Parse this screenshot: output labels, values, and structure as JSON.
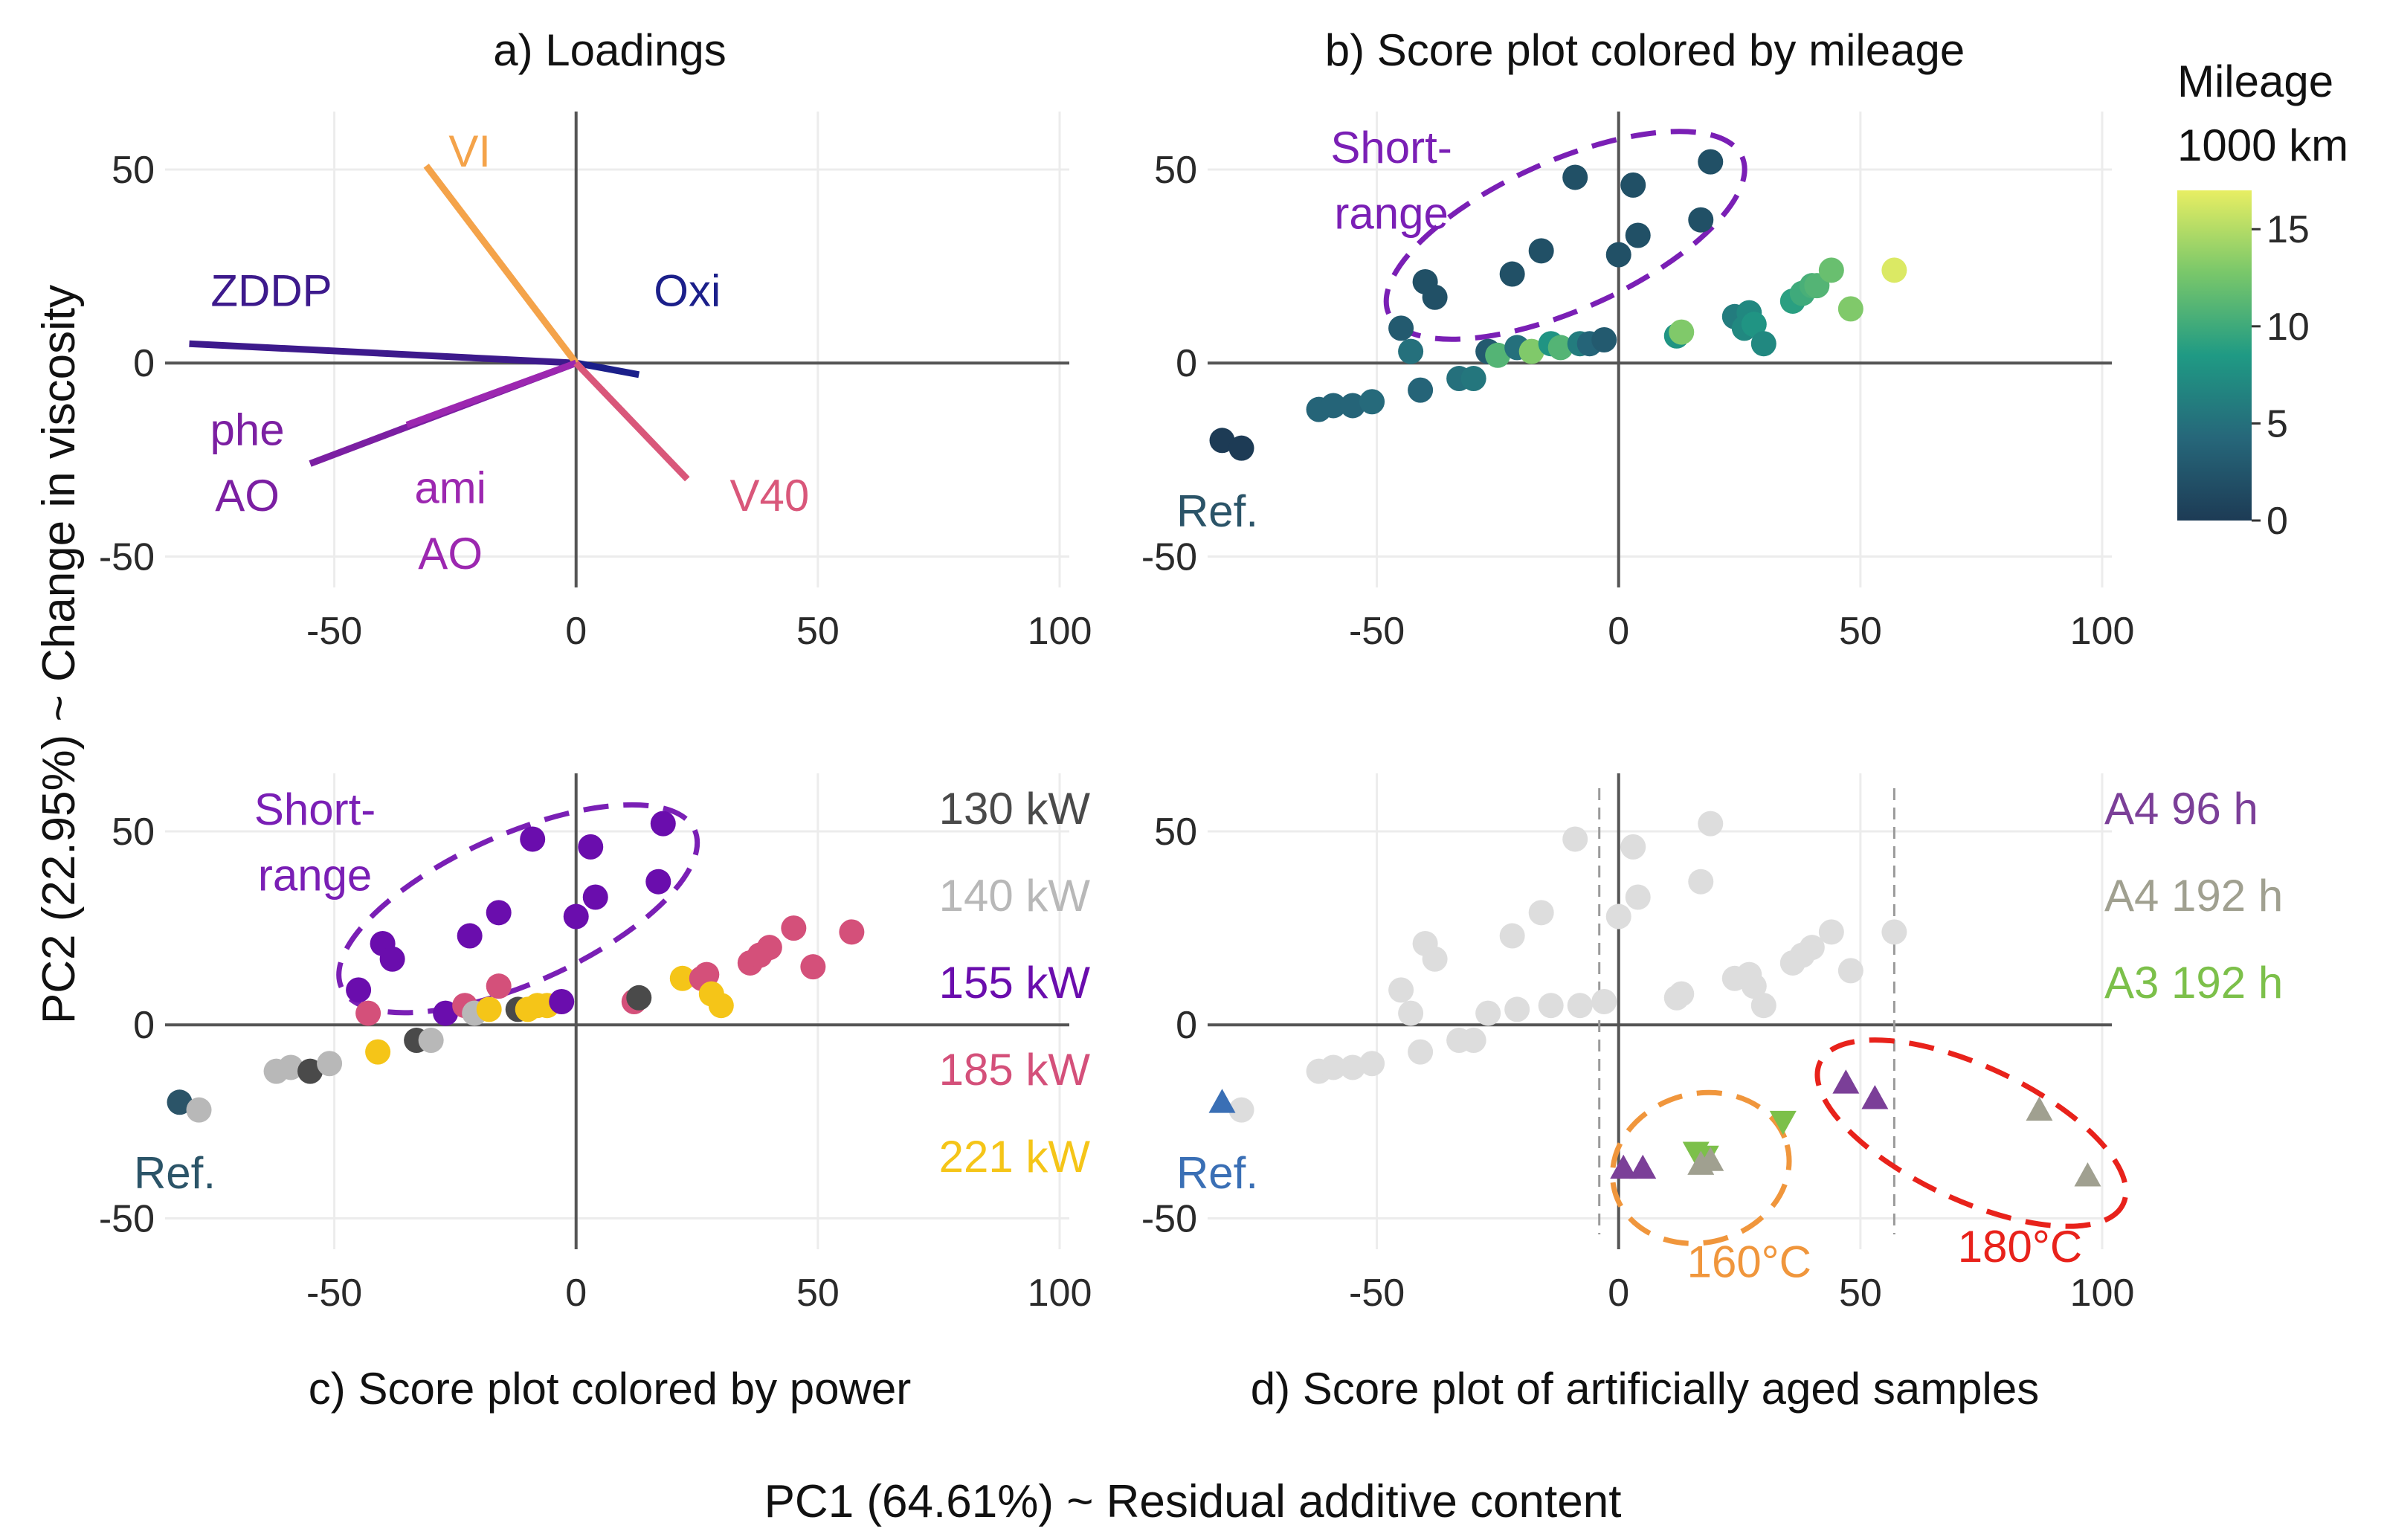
{
  "figure": {
    "x_label": "PC1 (64.61%) ~ Residual additive content",
    "y_label": "PC2 (22.95%) ~ Change in viscosity"
  },
  "colors": {
    "zddp": "#3d1a8c",
    "oxi": "#1b1f8a",
    "vi": "#f4a34a",
    "phe_ao": "#7b1fa2",
    "ami_ao": "#9c27b0",
    "v40": "#d9577a",
    "short_range": "#7a1fb5",
    "ref": "#2b5468",
    "grid": "#ececec",
    "zero_line": "#555555",
    "kw130": "#4a4a4a",
    "kw140": "#b8b8b8",
    "kw155": "#6a0dad",
    "kw185": "#d4507a",
    "kw221": "#f5c518",
    "a4_96h": "#7b3f98",
    "a4_192h": "#a0a090",
    "a3_192h": "#7cc04a",
    "c160": "#f0963c",
    "c180": "#e8221b",
    "bg_points": "#dddddd",
    "ref_triangle": "#3a6fb5"
  },
  "chart_data": [
    {
      "id": "a",
      "type": "line",
      "title": "a) Loadings",
      "xlim": [
        -85,
        102
      ],
      "ylim": [
        -58,
        65
      ],
      "x_ticks": [
        -50,
        0,
        50,
        100
      ],
      "y_ticks": [
        50,
        0,
        -50
      ],
      "series": [
        {
          "name": "ZDDP",
          "color_key": "zddp",
          "x": [
            0,
            -80
          ],
          "y": [
            0,
            5
          ]
        },
        {
          "name": "Oxi",
          "color_key": "oxi",
          "x": [
            0,
            13
          ],
          "y": [
            0,
            -3
          ]
        },
        {
          "name": "VI",
          "color_key": "vi",
          "x": [
            0,
            -31
          ],
          "y": [
            0,
            51
          ]
        },
        {
          "name": "phe AO",
          "color_key": "phe_ao",
          "x": [
            0,
            -55
          ],
          "y": [
            0,
            -26
          ]
        },
        {
          "name": "ami AO",
          "color_key": "ami_ao",
          "x": [
            0,
            -35
          ],
          "y": [
            0,
            -16
          ]
        },
        {
          "name": "V40",
          "color_key": "v40",
          "x": [
            0,
            23
          ],
          "y": [
            0,
            -30
          ]
        }
      ],
      "labels": [
        {
          "text": "ZDDP",
          "x": -63,
          "y": 19,
          "color_key": "zddp"
        },
        {
          "text": "Oxi",
          "x": 23,
          "y": 19,
          "color_key": "oxi"
        },
        {
          "text": "VI",
          "x": -22,
          "y": 55,
          "color_key": "vi"
        },
        {
          "text": "phe",
          "x": -68,
          "y": -17,
          "color_key": "phe_ao"
        },
        {
          "text": "AO",
          "x": -68,
          "y": -34,
          "color_key": "phe_ao"
        },
        {
          "text": "ami",
          "x": -26,
          "y": -32,
          "color_key": "ami_ao"
        },
        {
          "text": "AO",
          "x": -26,
          "y": -49,
          "color_key": "ami_ao"
        },
        {
          "text": "V40",
          "x": 40,
          "y": -34,
          "color_key": "v40"
        }
      ]
    },
    {
      "id": "b",
      "type": "scatter",
      "title": "b) Score plot colored by mileage",
      "xlim": [
        -85,
        102
      ],
      "ylim": [
        -58,
        65
      ],
      "x_ticks": [
        -50,
        0,
        50,
        100
      ],
      "y_ticks": [
        50,
        0,
        -50
      ],
      "colorbar": {
        "title_line1": "Mileage",
        "title_line2": "1000 km",
        "min": 0,
        "max": 17,
        "ticks": [
          15,
          10,
          5,
          0
        ]
      },
      "points": [
        {
          "x": -82,
          "y": -20,
          "mileage": 0
        },
        {
          "x": -78,
          "y": -22,
          "mileage": 0
        },
        {
          "x": -62,
          "y": -12,
          "mileage": 4
        },
        {
          "x": -59,
          "y": -11,
          "mileage": 4
        },
        {
          "x": -55,
          "y": -11,
          "mileage": 4
        },
        {
          "x": -51,
          "y": -10,
          "mileage": 4.5
        },
        {
          "x": -45,
          "y": 9,
          "mileage": 3
        },
        {
          "x": -43,
          "y": 3,
          "mileage": 5
        },
        {
          "x": -41,
          "y": -7,
          "mileage": 4
        },
        {
          "x": -40,
          "y": 21,
          "mileage": 2
        },
        {
          "x": -38,
          "y": 17,
          "mileage": 2
        },
        {
          "x": -33,
          "y": -4,
          "mileage": 5
        },
        {
          "x": -30,
          "y": -4,
          "mileage": 5.5
        },
        {
          "x": -27,
          "y": 3,
          "mileage": 3
        },
        {
          "x": -25,
          "y": 2,
          "mileage": 11
        },
        {
          "x": -22,
          "y": 23,
          "mileage": 2
        },
        {
          "x": -21,
          "y": 4,
          "mileage": 5
        },
        {
          "x": -18,
          "y": 3,
          "mileage": 13
        },
        {
          "x": -16,
          "y": 29,
          "mileage": 2
        },
        {
          "x": -14,
          "y": 5,
          "mileage": 8
        },
        {
          "x": -12,
          "y": 4,
          "mileage": 11
        },
        {
          "x": -9,
          "y": 48,
          "mileage": 2
        },
        {
          "x": -8,
          "y": 5,
          "mileage": 6
        },
        {
          "x": -6,
          "y": 5,
          "mileage": 4
        },
        {
          "x": -3,
          "y": 6,
          "mileage": 3
        },
        {
          "x": 0,
          "y": 28,
          "mileage": 2
        },
        {
          "x": 3,
          "y": 46,
          "mileage": 2
        },
        {
          "x": 4,
          "y": 33,
          "mileage": 2
        },
        {
          "x": 12,
          "y": 7,
          "mileage": 8
        },
        {
          "x": 13,
          "y": 8,
          "mileage": 13
        },
        {
          "x": 17,
          "y": 37,
          "mileage": 2
        },
        {
          "x": 19,
          "y": 52,
          "mileage": 2
        },
        {
          "x": 24,
          "y": 12,
          "mileage": 6
        },
        {
          "x": 26,
          "y": 9,
          "mileage": 7
        },
        {
          "x": 27,
          "y": 13,
          "mileage": 7
        },
        {
          "x": 28,
          "y": 10,
          "mileage": 8
        },
        {
          "x": 30,
          "y": 5,
          "mileage": 7
        },
        {
          "x": 36,
          "y": 16,
          "mileage": 9
        },
        {
          "x": 38,
          "y": 18,
          "mileage": 10
        },
        {
          "x": 40,
          "y": 20,
          "mileage": 10.5
        },
        {
          "x": 41,
          "y": 20,
          "mileage": 11
        },
        {
          "x": 44,
          "y": 24,
          "mileage": 12
        },
        {
          "x": 48,
          "y": 14,
          "mileage": 13
        },
        {
          "x": 57,
          "y": 24,
          "mileage": 16.5
        }
      ],
      "annotations": [
        {
          "text": "Short-",
          "x": -47,
          "y": 56,
          "color_key": "short_range"
        },
        {
          "text": "range",
          "x": -47,
          "y": 39,
          "color_key": "short_range"
        },
        {
          "text": "Ref.",
          "x": -83,
          "y": -38,
          "color_key": "ref"
        }
      ]
    },
    {
      "id": "c",
      "type": "scatter",
      "title": "c) Score plot colored by power",
      "xlim": [
        -85,
        102
      ],
      "ylim": [
        -58,
        65
      ],
      "x_ticks": [
        -50,
        0,
        50,
        100
      ],
      "y_ticks": [
        50,
        0,
        -50
      ],
      "legend": [
        {
          "label": "130 kW",
          "color_key": "kw130"
        },
        {
          "label": "140 kW",
          "color_key": "kw140"
        },
        {
          "label": "155 kW",
          "color_key": "kw155"
        },
        {
          "label": "185 kW",
          "color_key": "kw185"
        },
        {
          "label": "221 kW",
          "color_key": "kw221"
        }
      ],
      "points": [
        {
          "x": -82,
          "y": -20,
          "group": "ref"
        },
        {
          "x": -78,
          "y": -22,
          "group": "kw140"
        },
        {
          "x": -62,
          "y": -12,
          "group": "kw140"
        },
        {
          "x": -59,
          "y": -11,
          "group": "kw140"
        },
        {
          "x": -55,
          "y": -12,
          "group": "kw130"
        },
        {
          "x": -51,
          "y": -10,
          "group": "kw140"
        },
        {
          "x": -45,
          "y": 9,
          "group": "kw155"
        },
        {
          "x": -43,
          "y": 3,
          "group": "kw185"
        },
        {
          "x": -41,
          "y": -7,
          "group": "kw221"
        },
        {
          "x": -40,
          "y": 21,
          "group": "kw155"
        },
        {
          "x": -38,
          "y": 17,
          "group": "kw155"
        },
        {
          "x": -33,
          "y": -4,
          "group": "kw130"
        },
        {
          "x": -30,
          "y": -4,
          "group": "kw140"
        },
        {
          "x": -27,
          "y": 3,
          "group": "kw155"
        },
        {
          "x": -23,
          "y": 5,
          "group": "kw185"
        },
        {
          "x": -21,
          "y": 3,
          "group": "kw140"
        },
        {
          "x": -22,
          "y": 23,
          "group": "kw155"
        },
        {
          "x": -18,
          "y": 4,
          "group": "kw221"
        },
        {
          "x": -16,
          "y": 29,
          "group": "kw155"
        },
        {
          "x": -16,
          "y": 10,
          "group": "kw185"
        },
        {
          "x": -12,
          "y": 4,
          "group": "kw130"
        },
        {
          "x": -10,
          "y": 4,
          "group": "kw221"
        },
        {
          "x": -9,
          "y": 48,
          "group": "kw155"
        },
        {
          "x": -8,
          "y": 5,
          "group": "kw221"
        },
        {
          "x": -6,
          "y": 5,
          "group": "kw221"
        },
        {
          "x": -3,
          "y": 6,
          "group": "kw155"
        },
        {
          "x": 0,
          "y": 28,
          "group": "kw155"
        },
        {
          "x": 3,
          "y": 46,
          "group": "kw155"
        },
        {
          "x": 4,
          "y": 33,
          "group": "kw155"
        },
        {
          "x": 12,
          "y": 6,
          "group": "kw185"
        },
        {
          "x": 13,
          "y": 7,
          "group": "kw130"
        },
        {
          "x": 17,
          "y": 37,
          "group": "kw155"
        },
        {
          "x": 18,
          "y": 52,
          "group": "kw155"
        },
        {
          "x": 22,
          "y": 12,
          "group": "kw221"
        },
        {
          "x": 26,
          "y": 12,
          "group": "kw185"
        },
        {
          "x": 27,
          "y": 13,
          "group": "kw185"
        },
        {
          "x": 28,
          "y": 8,
          "group": "kw221"
        },
        {
          "x": 30,
          "y": 5,
          "group": "kw221"
        },
        {
          "x": 36,
          "y": 16,
          "group": "kw185"
        },
        {
          "x": 38,
          "y": 18,
          "group": "kw185"
        },
        {
          "x": 40,
          "y": 20,
          "group": "kw185"
        },
        {
          "x": 45,
          "y": 25,
          "group": "kw185"
        },
        {
          "x": 49,
          "y": 15,
          "group": "kw185"
        },
        {
          "x": 57,
          "y": 24,
          "group": "kw185"
        }
      ],
      "annotations": [
        {
          "text": "Short-",
          "x": -54,
          "y": 56,
          "color_key": "short_range"
        },
        {
          "text": "range",
          "x": -54,
          "y": 39,
          "color_key": "short_range"
        },
        {
          "text": "Ref.",
          "x": -83,
          "y": -38,
          "color_key": "ref"
        }
      ]
    },
    {
      "id": "d",
      "type": "scatter",
      "title": "d) Score plot of artificially aged samples",
      "xlim": [
        -85,
        102
      ],
      "ylim": [
        -58,
        65
      ],
      "x_ticks": [
        -50,
        0,
        50,
        100
      ],
      "y_ticks": [
        50,
        0,
        -50
      ],
      "vlines": [
        -4,
        57
      ],
      "legend": [
        {
          "label": "A4 96 h",
          "color_key": "a4_96h"
        },
        {
          "label": "A4 192 h",
          "color_key": "a4_192h"
        },
        {
          "label": "A3 192 h",
          "color_key": "a3_192h"
        }
      ],
      "background_points": [
        {
          "x": -78,
          "y": -22
        },
        {
          "x": -62,
          "y": -12
        },
        {
          "x": -59,
          "y": -11
        },
        {
          "x": -55,
          "y": -11
        },
        {
          "x": -51,
          "y": -10
        },
        {
          "x": -45,
          "y": 9
        },
        {
          "x": -43,
          "y": 3
        },
        {
          "x": -41,
          "y": -7
        },
        {
          "x": -40,
          "y": 21
        },
        {
          "x": -38,
          "y": 17
        },
        {
          "x": -33,
          "y": -4
        },
        {
          "x": -30,
          "y": -4
        },
        {
          "x": -27,
          "y": 3
        },
        {
          "x": -22,
          "y": 23
        },
        {
          "x": -21,
          "y": 4
        },
        {
          "x": -16,
          "y": 29
        },
        {
          "x": -14,
          "y": 5
        },
        {
          "x": -9,
          "y": 48
        },
        {
          "x": -8,
          "y": 5
        },
        {
          "x": -3,
          "y": 6
        },
        {
          "x": 0,
          "y": 28
        },
        {
          "x": 3,
          "y": 46
        },
        {
          "x": 4,
          "y": 33
        },
        {
          "x": 12,
          "y": 7
        },
        {
          "x": 13,
          "y": 8
        },
        {
          "x": 17,
          "y": 37
        },
        {
          "x": 19,
          "y": 52
        },
        {
          "x": 24,
          "y": 12
        },
        {
          "x": 27,
          "y": 13
        },
        {
          "x": 28,
          "y": 10
        },
        {
          "x": 30,
          "y": 5
        },
        {
          "x": 36,
          "y": 16
        },
        {
          "x": 38,
          "y": 18
        },
        {
          "x": 40,
          "y": 20
        },
        {
          "x": 44,
          "y": 24
        },
        {
          "x": 48,
          "y": 14
        },
        {
          "x": 57,
          "y": 24
        }
      ],
      "triangles": [
        {
          "x": -82,
          "y": -20,
          "group": "ref",
          "dir": "up"
        },
        {
          "x": 1,
          "y": -37,
          "group": "a4_96h",
          "dir": "up"
        },
        {
          "x": 5,
          "y": -37,
          "group": "a4_96h",
          "dir": "up"
        },
        {
          "x": 16,
          "y": -33,
          "group": "a3_192h",
          "dir": "down"
        },
        {
          "x": 18,
          "y": -34,
          "group": "a3_192h",
          "dir": "down"
        },
        {
          "x": 17,
          "y": -36,
          "group": "a4_192h",
          "dir": "up"
        },
        {
          "x": 19,
          "y": -35,
          "group": "a4_192h",
          "dir": "up"
        },
        {
          "x": 34,
          "y": -25,
          "group": "a3_192h",
          "dir": "down"
        },
        {
          "x": 47,
          "y": -15,
          "group": "a4_96h",
          "dir": "up"
        },
        {
          "x": 53,
          "y": -19,
          "group": "a4_96h",
          "dir": "up"
        },
        {
          "x": 87,
          "y": -22,
          "group": "a4_192h",
          "dir": "up"
        },
        {
          "x": 97,
          "y": -39,
          "group": "a4_192h",
          "dir": "up"
        }
      ],
      "annotations": [
        {
          "text": "Ref.",
          "x": -83,
          "y": -38,
          "color_key": "ref_triangle"
        },
        {
          "text": "160°C",
          "x": 27,
          "y": -61,
          "color_key": "c160"
        },
        {
          "text": "180°C",
          "x": 83,
          "y": -57,
          "color_key": "c180"
        }
      ]
    }
  ]
}
